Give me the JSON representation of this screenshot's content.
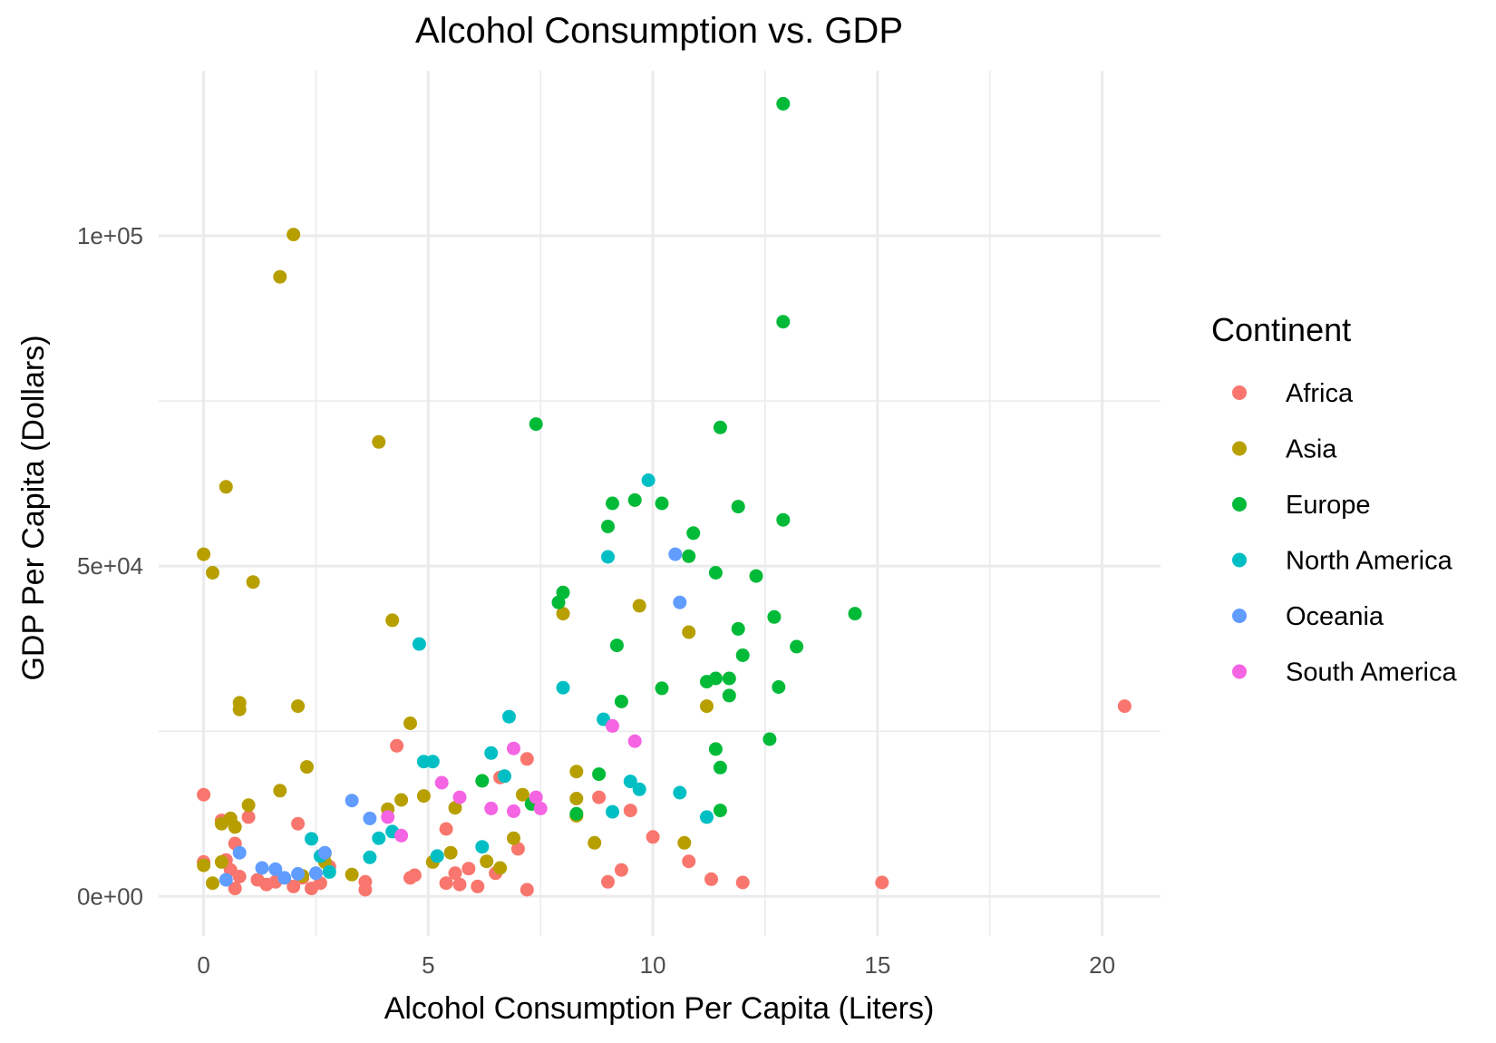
{
  "chart_data": {
    "type": "scatter",
    "title": "Alcohol Consumption vs. GDP",
    "xlabel": "Alcohol Consumption Per Capita (Liters)",
    "ylabel": "GDP Per Capita (Dollars)",
    "xlim": [
      -1,
      21.3
    ],
    "ylim": [
      -6000,
      125000
    ],
    "x_ticks": [
      0,
      5,
      10,
      15,
      20
    ],
    "x_tick_labels": [
      "0",
      "5",
      "10",
      "15",
      "20"
    ],
    "y_ticks": [
      0,
      50000,
      100000
    ],
    "y_tick_labels": [
      "0e+00",
      "5e+04",
      "1e+05"
    ],
    "grid": true,
    "legend": {
      "title": "Continent",
      "position": "right"
    },
    "colors": {
      "Africa": "#F8766D",
      "Asia": "#B79F00",
      "Europe": "#00BA38",
      "North America": "#00BFC4",
      "Oceania": "#619CFF",
      "South America": "#F564E3"
    },
    "series": [
      {
        "name": "Africa",
        "points": [
          [
            0.0,
            15400
          ],
          [
            0.0,
            5200
          ],
          [
            0.4,
            11500
          ],
          [
            0.5,
            5500
          ],
          [
            0.6,
            4000
          ],
          [
            0.7,
            1200
          ],
          [
            0.7,
            8000
          ],
          [
            0.8,
            3000
          ],
          [
            1.0,
            12000
          ],
          [
            1.2,
            2500
          ],
          [
            1.4,
            1800
          ],
          [
            1.6,
            2200
          ],
          [
            2.0,
            1500
          ],
          [
            2.1,
            11000
          ],
          [
            2.2,
            2800
          ],
          [
            2.4,
            1200
          ],
          [
            2.6,
            2000
          ],
          [
            2.8,
            4500
          ],
          [
            3.6,
            2200
          ],
          [
            3.6,
            1000
          ],
          [
            4.3,
            22800
          ],
          [
            4.6,
            2800
          ],
          [
            4.7,
            3200
          ],
          [
            5.4,
            2000
          ],
          [
            5.4,
            10200
          ],
          [
            5.6,
            3500
          ],
          [
            5.7,
            1800
          ],
          [
            5.9,
            4200
          ],
          [
            6.1,
            1500
          ],
          [
            6.5,
            3500
          ],
          [
            6.6,
            18000
          ],
          [
            7.0,
            7200
          ],
          [
            7.2,
            20800
          ],
          [
            7.2,
            1000
          ],
          [
            8.8,
            15000
          ],
          [
            9.0,
            2200
          ],
          [
            9.3,
            4000
          ],
          [
            9.5,
            13000
          ],
          [
            10.0,
            9000
          ],
          [
            10.8,
            5300
          ],
          [
            11.3,
            2600
          ],
          [
            12.0,
            2100
          ],
          [
            15.1,
            2100
          ],
          [
            20.5,
            28800
          ]
        ]
      },
      {
        "name": "Asia",
        "points": [
          [
            0.0,
            51800
          ],
          [
            0.0,
            4700
          ],
          [
            0.2,
            49000
          ],
          [
            0.2,
            2000
          ],
          [
            0.4,
            5200
          ],
          [
            0.4,
            11000
          ],
          [
            0.5,
            62000
          ],
          [
            0.6,
            11800
          ],
          [
            0.7,
            10500
          ],
          [
            0.8,
            29300
          ],
          [
            0.8,
            28300
          ],
          [
            1.0,
            13800
          ],
          [
            1.1,
            47600
          ],
          [
            1.7,
            16000
          ],
          [
            1.7,
            93800
          ],
          [
            2.0,
            100200
          ],
          [
            2.1,
            28800
          ],
          [
            2.2,
            3100
          ],
          [
            2.3,
            19600
          ],
          [
            2.7,
            6500
          ],
          [
            2.7,
            5200
          ],
          [
            3.3,
            3300
          ],
          [
            3.9,
            68800
          ],
          [
            4.1,
            13200
          ],
          [
            4.2,
            41800
          ],
          [
            4.4,
            14600
          ],
          [
            4.6,
            26200
          ],
          [
            4.9,
            15200
          ],
          [
            5.1,
            5200
          ],
          [
            5.5,
            6600
          ],
          [
            5.6,
            13400
          ],
          [
            6.3,
            5300
          ],
          [
            6.6,
            4300
          ],
          [
            6.9,
            8800
          ],
          [
            7.1,
            15400
          ],
          [
            8.0,
            42800
          ],
          [
            8.3,
            12200
          ],
          [
            8.3,
            18900
          ],
          [
            8.3,
            14800
          ],
          [
            8.7,
            8100
          ],
          [
            9.7,
            44000
          ],
          [
            10.7,
            8100
          ],
          [
            10.8,
            40000
          ],
          [
            11.2,
            28800
          ]
        ]
      },
      {
        "name": "Europe",
        "points": [
          [
            6.2,
            17500
          ],
          [
            7.3,
            14000
          ],
          [
            7.4,
            71500
          ],
          [
            7.9,
            44500
          ],
          [
            8.0,
            46000
          ],
          [
            8.3,
            12500
          ],
          [
            8.8,
            18500
          ],
          [
            9.0,
            56000
          ],
          [
            9.1,
            59500
          ],
          [
            9.2,
            38000
          ],
          [
            9.3,
            29500
          ],
          [
            9.6,
            60000
          ],
          [
            10.2,
            31500
          ],
          [
            10.2,
            59500
          ],
          [
            10.9,
            55000
          ],
          [
            10.8,
            51500
          ],
          [
            11.2,
            32500
          ],
          [
            11.4,
            33000
          ],
          [
            11.4,
            49000
          ],
          [
            11.4,
            22300
          ],
          [
            11.5,
            19500
          ],
          [
            11.5,
            13000
          ],
          [
            11.5,
            71000
          ],
          [
            11.7,
            33000
          ],
          [
            11.7,
            30400
          ],
          [
            11.9,
            40500
          ],
          [
            11.9,
            59000
          ],
          [
            12.0,
            36500
          ],
          [
            12.3,
            48500
          ],
          [
            12.6,
            23800
          ],
          [
            12.7,
            42300
          ],
          [
            12.8,
            31700
          ],
          [
            12.9,
            87000
          ],
          [
            12.9,
            57000
          ],
          [
            12.9,
            120000
          ],
          [
            13.2,
            37800
          ],
          [
            14.5,
            42800
          ]
        ]
      },
      {
        "name": "North America",
        "points": [
          [
            2.4,
            8700
          ],
          [
            2.6,
            6100
          ],
          [
            2.8,
            3700
          ],
          [
            3.7,
            5900
          ],
          [
            3.9,
            8800
          ],
          [
            4.2,
            9800
          ],
          [
            4.8,
            38200
          ],
          [
            4.9,
            20400
          ],
          [
            5.1,
            20400
          ],
          [
            5.2,
            6100
          ],
          [
            6.2,
            7500
          ],
          [
            6.4,
            21700
          ],
          [
            6.7,
            18200
          ],
          [
            6.8,
            27200
          ],
          [
            8.0,
            31600
          ],
          [
            8.9,
            26800
          ],
          [
            9.0,
            51400
          ],
          [
            9.1,
            12800
          ],
          [
            9.5,
            17400
          ],
          [
            9.7,
            16200
          ],
          [
            9.9,
            63000
          ],
          [
            10.6,
            15700
          ],
          [
            11.2,
            12000
          ]
        ]
      },
      {
        "name": "Oceania",
        "points": [
          [
            0.5,
            2500
          ],
          [
            0.8,
            6600
          ],
          [
            1.3,
            4300
          ],
          [
            1.6,
            4100
          ],
          [
            1.8,
            2800
          ],
          [
            2.1,
            3400
          ],
          [
            2.5,
            3500
          ],
          [
            2.7,
            6600
          ],
          [
            3.3,
            14500
          ],
          [
            3.7,
            11800
          ],
          [
            10.5,
            51800
          ],
          [
            10.6,
            44500
          ]
        ]
      },
      {
        "name": "South America",
        "points": [
          [
            4.1,
            12000
          ],
          [
            4.4,
            9200
          ],
          [
            5.3,
            17200
          ],
          [
            5.7,
            15000
          ],
          [
            6.4,
            13300
          ],
          [
            6.9,
            22400
          ],
          [
            6.9,
            12900
          ],
          [
            7.4,
            15000
          ],
          [
            7.5,
            13300
          ],
          [
            9.1,
            25800
          ],
          [
            9.6,
            23500
          ]
        ]
      }
    ]
  }
}
